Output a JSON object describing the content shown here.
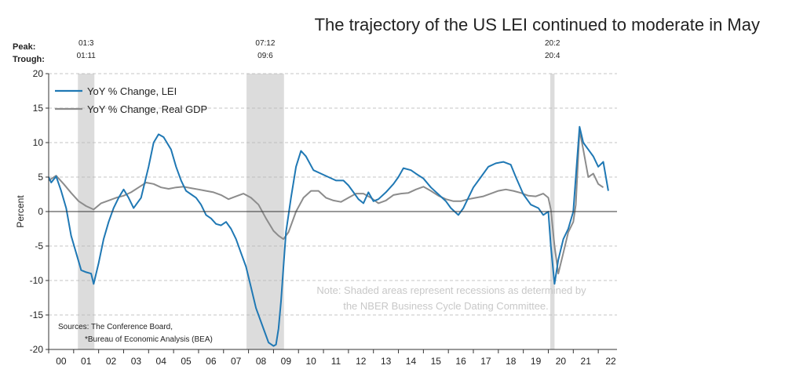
{
  "chart_data": {
    "type": "line",
    "title": "The trajectory of the US LEI continued to moderate in May",
    "ylabel": "Percent",
    "ylim": [
      -20,
      20
    ],
    "yticks": [
      -20,
      -15,
      -10,
      -5,
      0,
      5,
      10,
      15,
      20
    ],
    "xlim": [
      2000.0,
      2022.75
    ],
    "x_tick_labels": [
      "00",
      "01",
      "02",
      "03",
      "04",
      "05",
      "06",
      "07",
      "08",
      "09",
      "10",
      "11",
      "12",
      "13",
      "14",
      "15",
      "16",
      "17",
      "18",
      "19",
      "20",
      "21",
      "22"
    ],
    "grid": "horizontal dashed",
    "legend_position": "top-left",
    "colors": {
      "lei": "#1f78b4",
      "gdp": "#8c8c8c",
      "recession": "#dcdcdc"
    },
    "peak_label": "Peak:",
    "trough_label": "Trough:",
    "recessions": [
      {
        "start": 2001.17,
        "end": 2001.83,
        "peak": "01:3",
        "trough": "01:11"
      },
      {
        "start": 2007.92,
        "end": 2009.42,
        "peak": "07:12",
        "trough": "09:6"
      },
      {
        "start": 2020.08,
        "end": 2020.25,
        "peak": "20:2",
        "trough": "20:4"
      }
    ],
    "series": [
      {
        "name": "YoY % Change, LEI",
        "x": [
          2000.0,
          2000.1,
          2000.3,
          2000.5,
          2000.7,
          2000.9,
          2001.1,
          2001.3,
          2001.5,
          2001.7,
          2001.8,
          2002.0,
          2002.2,
          2002.4,
          2002.6,
          2002.8,
          2003.0,
          2003.2,
          2003.4,
          2003.7,
          2004.0,
          2004.2,
          2004.4,
          2004.6,
          2004.9,
          2005.1,
          2005.3,
          2005.5,
          2005.7,
          2005.9,
          2006.1,
          2006.3,
          2006.5,
          2006.7,
          2006.9,
          2007.1,
          2007.3,
          2007.5,
          2007.7,
          2007.9,
          2008.1,
          2008.3,
          2008.6,
          2008.8,
          2009.0,
          2009.1,
          2009.2,
          2009.3,
          2009.4,
          2009.5,
          2009.7,
          2009.9,
          2010.1,
          2010.3,
          2010.6,
          2010.9,
          2011.2,
          2011.5,
          2011.8,
          2012.0,
          2012.2,
          2012.4,
          2012.6,
          2012.8,
          2013.0,
          2013.2,
          2013.5,
          2013.8,
          2014.0,
          2014.2,
          2014.5,
          2014.7,
          2015.0,
          2015.3,
          2015.6,
          2015.9,
          2016.1,
          2016.4,
          2016.6,
          2016.8,
          2017.0,
          2017.3,
          2017.6,
          2017.9,
          2018.2,
          2018.5,
          2018.7,
          2019.0,
          2019.3,
          2019.6,
          2019.8,
          2020.0,
          2020.1,
          2020.25,
          2020.4,
          2020.6,
          2020.8,
          2021.0,
          2021.1,
          2021.25,
          2021.4,
          2021.6,
          2021.8,
          2022.0,
          2022.2,
          2022.4
        ],
        "values": [
          5.0,
          4.2,
          5.1,
          3.0,
          0.5,
          -3.5,
          -6.0,
          -8.5,
          -8.8,
          -9.0,
          -10.5,
          -7.5,
          -4.0,
          -1.5,
          0.5,
          2.0,
          3.2,
          2.0,
          0.5,
          2.0,
          6.5,
          10.0,
          11.2,
          10.8,
          9.0,
          6.5,
          4.5,
          3.0,
          2.5,
          2.0,
          1.0,
          -0.5,
          -1.0,
          -1.8,
          -2.0,
          -1.5,
          -2.5,
          -4.0,
          -6.0,
          -8.0,
          -11.0,
          -14.0,
          -17.0,
          -19.0,
          -19.5,
          -19.3,
          -17.0,
          -13.0,
          -8.0,
          -3.0,
          2.0,
          6.5,
          8.8,
          8.0,
          6.0,
          5.5,
          5.0,
          4.5,
          4.5,
          3.8,
          2.8,
          1.8,
          1.2,
          2.8,
          1.5,
          1.8,
          2.8,
          4.0,
          5.0,
          6.3,
          6.0,
          5.5,
          4.8,
          3.5,
          2.5,
          1.5,
          0.5,
          -0.5,
          0.5,
          2.0,
          3.5,
          5.0,
          6.5,
          7.0,
          7.2,
          6.8,
          5.0,
          2.5,
          1.0,
          0.5,
          -0.5,
          0.0,
          -5.0,
          -10.5,
          -7.0,
          -4.0,
          -2.5,
          0.0,
          5.0,
          12.3,
          10.0,
          9.0,
          8.0,
          6.5,
          7.2,
          3.0
        ]
      },
      {
        "name": "YoY % Change, Real GDP",
        "x": [
          2000.0,
          2000.3,
          2000.6,
          2000.9,
          2001.2,
          2001.5,
          2001.8,
          2002.1,
          2002.4,
          2002.7,
          2003.0,
          2003.3,
          2003.6,
          2003.9,
          2004.2,
          2004.5,
          2004.8,
          2005.1,
          2005.4,
          2005.7,
          2006.0,
          2006.3,
          2006.6,
          2006.9,
          2007.2,
          2007.5,
          2007.8,
          2008.1,
          2008.4,
          2008.7,
          2009.0,
          2009.2,
          2009.4,
          2009.6,
          2009.9,
          2010.2,
          2010.5,
          2010.8,
          2011.1,
          2011.4,
          2011.7,
          2012.0,
          2012.3,
          2012.6,
          2012.9,
          2013.2,
          2013.5,
          2013.8,
          2014.1,
          2014.4,
          2014.7,
          2015.0,
          2015.3,
          2015.6,
          2015.9,
          2016.2,
          2016.5,
          2016.8,
          2017.1,
          2017.4,
          2017.7,
          2018.0,
          2018.3,
          2018.6,
          2018.9,
          2019.2,
          2019.5,
          2019.8,
          2020.0,
          2020.1,
          2020.25,
          2020.4,
          2020.6,
          2020.8,
          2021.0,
          2021.1,
          2021.25,
          2021.4,
          2021.6,
          2021.8,
          2022.0,
          2022.2
        ],
        "values": [
          4.5,
          5.2,
          4.0,
          2.7,
          1.5,
          0.8,
          0.3,
          1.2,
          1.6,
          2.0,
          2.3,
          2.8,
          3.5,
          4.2,
          4.0,
          3.5,
          3.3,
          3.5,
          3.6,
          3.4,
          3.2,
          3.0,
          2.8,
          2.4,
          1.8,
          2.2,
          2.6,
          2.0,
          1.0,
          -1.0,
          -2.8,
          -3.5,
          -4.0,
          -3.0,
          0.0,
          2.0,
          3.0,
          3.0,
          2.0,
          1.6,
          1.4,
          2.0,
          2.6,
          2.6,
          2.0,
          1.2,
          1.6,
          2.4,
          2.6,
          2.7,
          3.2,
          3.6,
          3.0,
          2.3,
          1.8,
          1.5,
          1.5,
          1.8,
          2.0,
          2.2,
          2.6,
          3.0,
          3.2,
          3.0,
          2.7,
          2.3,
          2.2,
          2.6,
          2.0,
          0.3,
          -5.0,
          -9.0,
          -6.0,
          -3.0,
          -1.5,
          1.0,
          11.8,
          9.0,
          5.0,
          5.5,
          4.0,
          3.5
        ]
      }
    ],
    "sources": [
      "Sources: The Conference Board,",
      "*Bureau of Economic Analysis (BEA)"
    ],
    "note": [
      "Note: Shaded areas represent recessions as determined by",
      "the NBER Business Cycle Dating Committee."
    ]
  }
}
